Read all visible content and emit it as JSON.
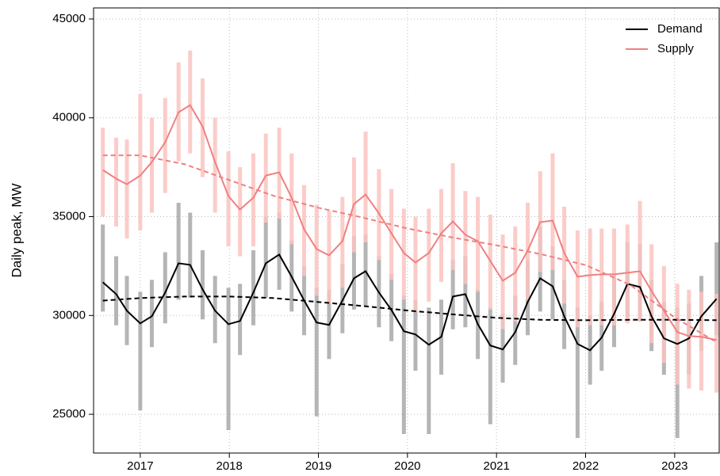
{
  "chart_data": {
    "type": "line",
    "ylabel": "Daily peak, MW",
    "xlim": [
      2016.476,
      2023.5
    ],
    "ylim": [
      23040,
      45560
    ],
    "xticks": [
      2017,
      2018,
      2019,
      2020,
      2021,
      2022,
      2023
    ],
    "yticks": [
      25000,
      30000,
      35000,
      40000,
      45000
    ],
    "grid": true,
    "legend": "top-right",
    "x": [
      2016.58,
      2016.73,
      2016.85,
      2017.0,
      2017.13,
      2017.28,
      2017.43,
      2017.56,
      2017.7,
      2017.84,
      2017.99,
      2018.12,
      2018.27,
      2018.41,
      2018.56,
      2018.7,
      2018.84,
      2018.98,
      2019.12,
      2019.27,
      2019.4,
      2019.53,
      2019.68,
      2019.82,
      2019.96,
      2020.09,
      2020.24,
      2020.38,
      2020.51,
      2020.65,
      2020.79,
      2020.93,
      2021.07,
      2021.21,
      2021.35,
      2021.49,
      2021.63,
      2021.76,
      2021.91,
      2022.05,
      2022.18,
      2022.32,
      2022.47,
      2022.61,
      2022.74,
      2022.88,
      2023.03,
      2023.16,
      2023.3,
      2023.47
    ],
    "trend_x": [
      2016.58,
      2017.0,
      2017.5,
      2018.0,
      2018.5,
      2019.0,
      2019.5,
      2020.0,
      2020.5,
      2021.0,
      2021.5,
      2022.0,
      2022.5,
      2023.0,
      2023.47
    ],
    "series": [
      {
        "name": "Demand",
        "color": "#000000",
        "range_color": "#a9a9a9",
        "values": [
          31680,
          31080,
          30240,
          29600,
          29960,
          31160,
          32640,
          32560,
          31320,
          30240,
          29560,
          29720,
          31160,
          32640,
          33080,
          31960,
          30760,
          29640,
          29520,
          30760,
          31880,
          32240,
          31160,
          30280,
          29200,
          29040,
          28520,
          28920,
          30960,
          31080,
          29560,
          28480,
          28280,
          29160,
          30680,
          31880,
          31480,
          29960,
          28560,
          28240,
          28880,
          30080,
          31600,
          31440,
          29960,
          28840,
          28560,
          28840,
          29960,
          30840
        ],
        "low": [
          30200,
          29500,
          28500,
          25200,
          28400,
          29600,
          30800,
          30900,
          29800,
          28600,
          24200,
          28000,
          29500,
          30900,
          31300,
          30200,
          29000,
          24900,
          27800,
          29100,
          30300,
          30500,
          29400,
          28700,
          24000,
          27200,
          24000,
          27000,
          29300,
          29400,
          27800,
          24500,
          26600,
          27500,
          29000,
          30200,
          29800,
          28300,
          23800,
          26500,
          27200,
          28400,
          29900,
          29700,
          28200,
          27000,
          23800,
          27000,
          28200,
          29000
        ],
        "high": [
          34600,
          33000,
          32000,
          31200,
          31800,
          33200,
          35700,
          35200,
          33300,
          32000,
          31400,
          31600,
          33300,
          35000,
          35200,
          33800,
          32500,
          31400,
          31300,
          32600,
          34000,
          34100,
          33000,
          32100,
          31000,
          30800,
          30400,
          30800,
          32800,
          33000,
          31300,
          30400,
          30100,
          31000,
          32800,
          34500,
          33500,
          31800,
          30400,
          30000,
          30700,
          32000,
          33700,
          33600,
          31800,
          30700,
          30400,
          30600,
          32000,
          33700
        ],
        "trend": [
          30750,
          30880,
          30960,
          30960,
          30880,
          30680,
          30480,
          30250,
          30060,
          29880,
          29780,
          29760,
          29780,
          29780,
          29760
        ]
      },
      {
        "name": "Supply",
        "color": "#f08080",
        "range_color": "#fbc4c0",
        "values": [
          37360,
          36920,
          36640,
          37080,
          37760,
          38760,
          40280,
          40640,
          39560,
          37760,
          36040,
          35360,
          35960,
          37080,
          37240,
          35960,
          34360,
          33360,
          33040,
          33760,
          35640,
          36120,
          35160,
          34160,
          33160,
          32680,
          33160,
          34160,
          34760,
          34080,
          33760,
          32760,
          31760,
          32160,
          33280,
          34720,
          34800,
          33160,
          31960,
          32040,
          32080,
          32080,
          32160,
          32240,
          31240,
          30240,
          29160,
          28960,
          28920,
          28760
        ],
        "low": [
          35000,
          34500,
          33900,
          34300,
          35200,
          36200,
          37800,
          38200,
          37000,
          35200,
          33500,
          33000,
          33500,
          34700,
          34900,
          33600,
          32000,
          31000,
          30600,
          31400,
          33200,
          33700,
          32800,
          31800,
          30800,
          30200,
          30700,
          31700,
          32300,
          31600,
          31200,
          30300,
          29300,
          29700,
          30800,
          32200,
          32300,
          30600,
          29400,
          29500,
          29500,
          29500,
          29600,
          29700,
          28600,
          27600,
          26500,
          26300,
          26200,
          26100
        ],
        "high": [
          39500,
          39000,
          38900,
          41200,
          40000,
          41000,
          42800,
          43400,
          42000,
          40000,
          38300,
          37500,
          38200,
          39200,
          39500,
          38200,
          36600,
          35600,
          35300,
          36000,
          38000,
          39300,
          37400,
          36400,
          35400,
          35000,
          35400,
          36400,
          37700,
          36300,
          36000,
          35100,
          34100,
          34500,
          35700,
          37300,
          38200,
          35500,
          34300,
          34400,
          34400,
          34400,
          34600,
          35800,
          33600,
          32500,
          31600,
          31300,
          31200,
          31100
        ],
        "trend": [
          38100,
          38100,
          37650,
          36850,
          36050,
          35450,
          34950,
          34400,
          33950,
          33550,
          33100,
          32550,
          31550,
          29900,
          28650
        ]
      }
    ]
  }
}
